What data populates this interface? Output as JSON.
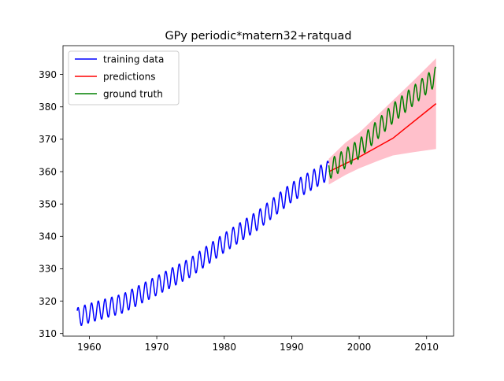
{
  "chart_data": {
    "type": "line",
    "title": "GPy periodic*matern32+ratquad",
    "xlabel": "",
    "ylabel": "",
    "xlim": [
      1956.1,
      2014.0
    ],
    "ylim": [
      309.2,
      398.9
    ],
    "xticks": [
      1960,
      1970,
      1980,
      1990,
      2000,
      2010
    ],
    "yticks": [
      310,
      320,
      330,
      340,
      350,
      360,
      370,
      380,
      390
    ],
    "grid": false,
    "legend_position": "top-left",
    "seasonal_amplitude": 3.0,
    "seasonal_peak_phase": 0.33,
    "series": [
      {
        "name": "training data",
        "color": "#0000ff",
        "type": "line",
        "x_start": 1958.2,
        "x_end": 1995.5,
        "trend_points": [
          [
            1958.2,
            315.0
          ],
          [
            1960,
            316.3
          ],
          [
            1965,
            319.3
          ],
          [
            1970,
            324.8
          ],
          [
            1975,
            330.4
          ],
          [
            1980,
            338.0
          ],
          [
            1985,
            345.0
          ],
          [
            1990,
            353.6
          ],
          [
            1995.5,
            360.5
          ]
        ]
      },
      {
        "name": "predictions",
        "color": "#ff0000",
        "type": "line",
        "points": [
          [
            1995.5,
            360.0
          ],
          [
            2000,
            364.5
          ],
          [
            2005,
            370.3
          ],
          [
            2011.4,
            381.0
          ]
        ]
      },
      {
        "name": "confidence band",
        "color": "#ffc0cb",
        "type": "area",
        "x": [
          1995.5,
          1998,
          2000,
          2003,
          2005,
          2008,
          2011.4
        ],
        "lower": [
          356.0,
          359.0,
          361.0,
          363.5,
          365.0,
          366.0,
          367.0
        ],
        "upper": [
          364.0,
          369.0,
          372.0,
          378.0,
          382.0,
          388.0,
          395.0
        ]
      },
      {
        "name": "ground truth",
        "color": "#008000",
        "type": "line",
        "x_start": 1995.5,
        "x_end": 2011.4,
        "trend_points": [
          [
            1995.5,
            360.5
          ],
          [
            2000,
            367.0
          ],
          [
            2005,
            378.0
          ],
          [
            2011.4,
            389.5
          ]
        ]
      }
    ]
  }
}
